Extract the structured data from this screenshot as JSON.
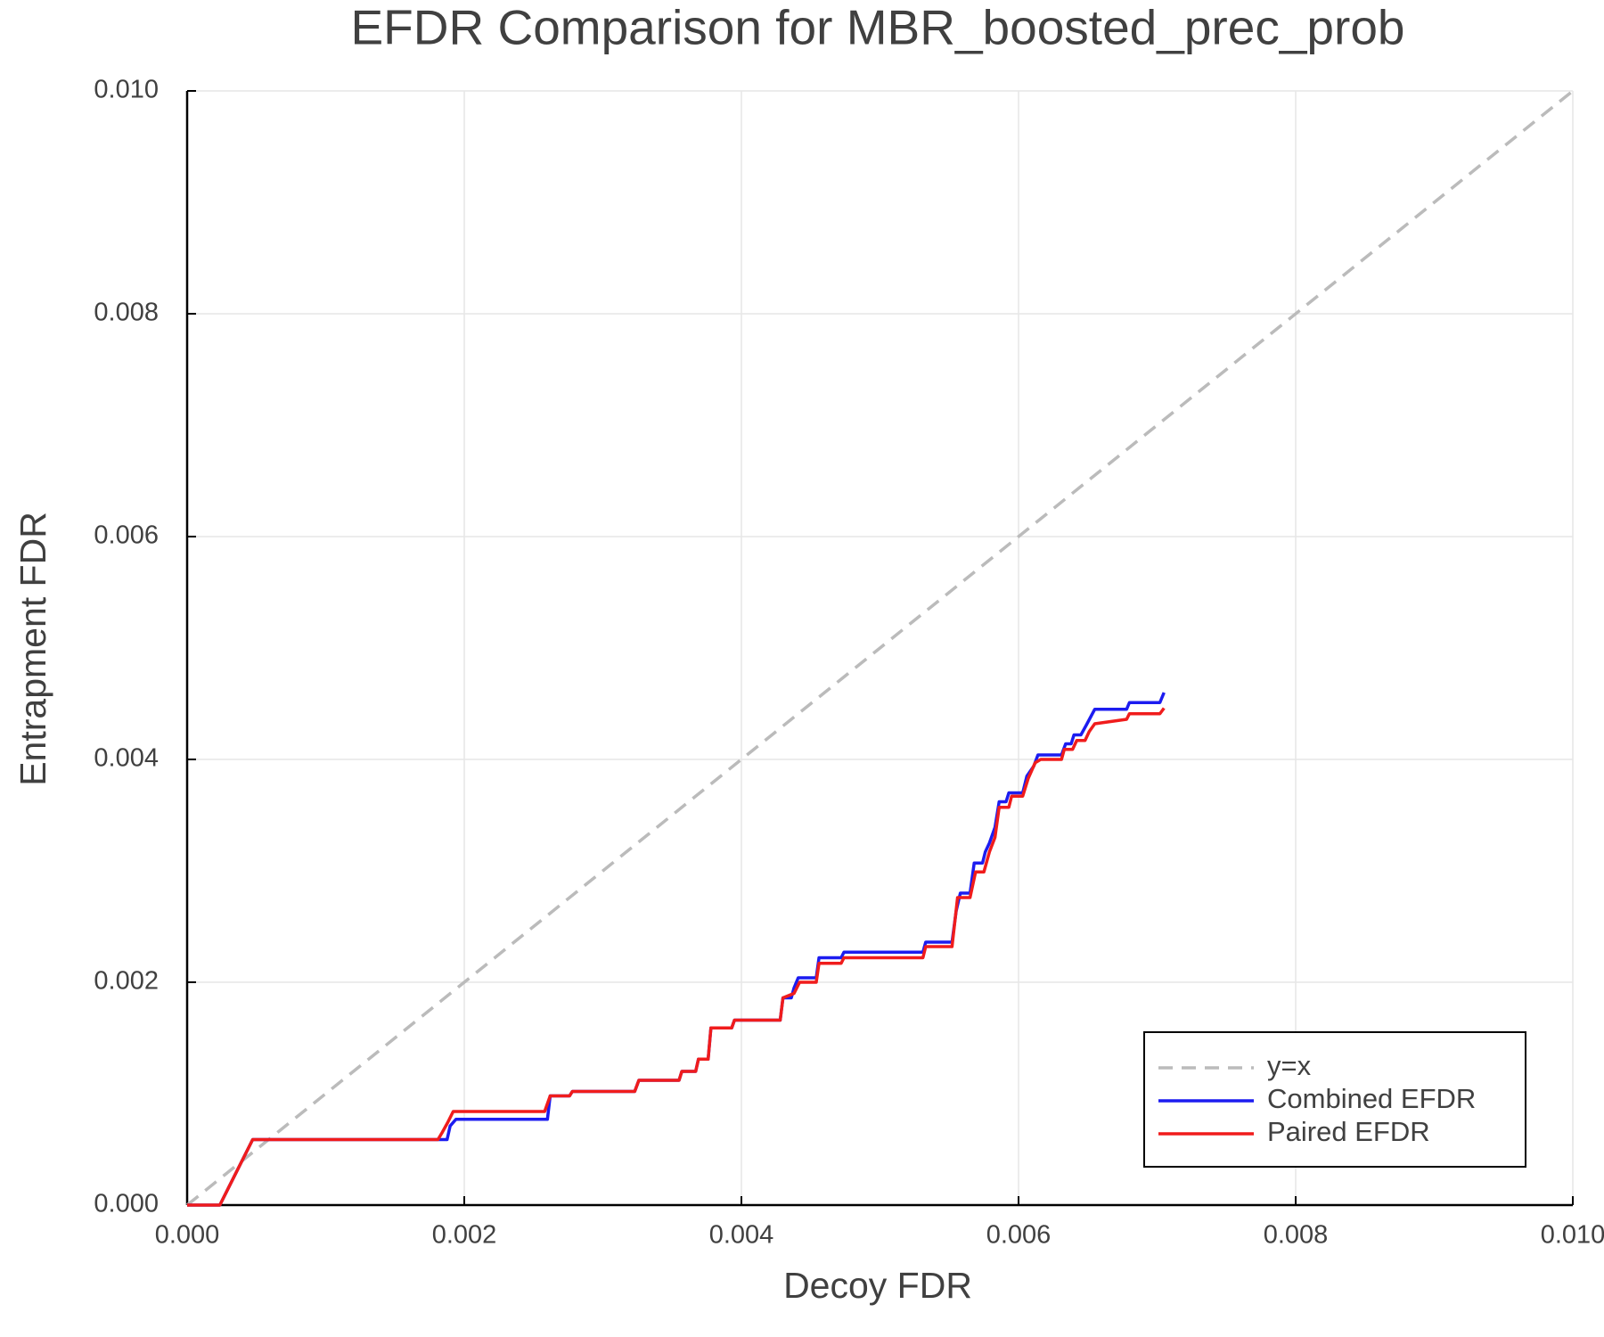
{
  "chart_data": {
    "type": "line",
    "title": "EFDR Comparison for MBR_boosted_prec_prob",
    "xlabel": "Decoy FDR",
    "ylabel": "Entrapment FDR",
    "xlim": [
      0,
      0.01
    ],
    "ylim": [
      0,
      0.01
    ],
    "xticks": [
      {
        "value": 0,
        "label": "0.000"
      },
      {
        "value": 0.002,
        "label": "0.002"
      },
      {
        "value": 0.004,
        "label": "0.004"
      },
      {
        "value": 0.006,
        "label": "0.006"
      },
      {
        "value": 0.008,
        "label": "0.008"
      },
      {
        "value": 0.01,
        "label": "0.010"
      }
    ],
    "yticks": [
      {
        "value": 0,
        "label": "0.000"
      },
      {
        "value": 0.002,
        "label": "0.002"
      },
      {
        "value": 0.004,
        "label": "0.004"
      },
      {
        "value": 0.006,
        "label": "0.006"
      },
      {
        "value": 0.008,
        "label": "0.008"
      },
      {
        "value": 0.01,
        "label": "0.010"
      }
    ],
    "grid": true,
    "legend": "lower right",
    "series": [
      {
        "name": "y=x",
        "color": "#bbbbbb",
        "linestyle": "dash",
        "x": [
          0,
          0.01
        ],
        "values": [
          0,
          0.01
        ]
      },
      {
        "name": "Combined EFDR",
        "color": "#1c1cf0",
        "linestyle": "solid",
        "x": [
          0,
          0.000236,
          0.000473,
          0.001876,
          0.001898,
          0.00194,
          0.0026,
          0.00262,
          0.00276,
          0.00278,
          0.00323,
          0.00326,
          0.00355,
          0.00357,
          0.00367,
          0.00369,
          0.00376,
          0.00378,
          0.00393,
          0.00395,
          0.00428,
          0.0043,
          0.00436,
          0.00438,
          0.00441,
          0.00454,
          0.00456,
          0.00472,
          0.00474,
          0.00531,
          0.00533,
          0.00552,
          0.00555,
          0.00558,
          0.00565,
          0.00568,
          0.00574,
          0.00576,
          0.00579,
          0.00583,
          0.00586,
          0.00591,
          0.00593,
          0.00603,
          0.00606,
          0.00611,
          0.00614,
          0.00631,
          0.00634,
          0.00638,
          0.0064,
          0.00645,
          0.00649,
          0.00652,
          0.00655,
          0.00678,
          0.0068,
          0.00702,
          0.00705
        ],
        "values": [
          0,
          0,
          0.000588,
          0.000588,
          0.00071,
          0.00077,
          0.00077,
          0.00098,
          0.00098,
          0.00102,
          0.00102,
          0.00112,
          0.00112,
          0.0012,
          0.0012,
          0.00131,
          0.00131,
          0.00159,
          0.00159,
          0.00166,
          0.00166,
          0.00186,
          0.00186,
          0.00195,
          0.00204,
          0.00204,
          0.00222,
          0.00222,
          0.00227,
          0.00227,
          0.00236,
          0.00236,
          0.00264,
          0.0028,
          0.0028,
          0.00307,
          0.00307,
          0.00317,
          0.00325,
          0.00339,
          0.00362,
          0.00362,
          0.0037,
          0.0037,
          0.00385,
          0.00394,
          0.00404,
          0.00404,
          0.00414,
          0.00414,
          0.00422,
          0.00422,
          0.00431,
          0.00438,
          0.00445,
          0.00445,
          0.00451,
          0.00451,
          0.0046
        ]
      },
      {
        "name": "Paired EFDR",
        "color": "#f01c1c",
        "linestyle": "solid",
        "x": [
          0,
          0.000236,
          0.000473,
          0.00181,
          0.00184,
          0.00188,
          0.00192,
          0.00258,
          0.00262,
          0.00276,
          0.00278,
          0.00323,
          0.00326,
          0.00355,
          0.00357,
          0.00367,
          0.00369,
          0.00376,
          0.00378,
          0.00393,
          0.00395,
          0.00428,
          0.0043,
          0.00438,
          0.00442,
          0.00454,
          0.00456,
          0.00472,
          0.00474,
          0.00531,
          0.00533,
          0.00552,
          0.00556,
          0.00565,
          0.00569,
          0.00575,
          0.00579,
          0.00583,
          0.00586,
          0.00593,
          0.00595,
          0.00603,
          0.00607,
          0.00612,
          0.00616,
          0.00631,
          0.00633,
          0.00639,
          0.00642,
          0.00648,
          0.00651,
          0.00655,
          0.00678,
          0.0068,
          0.00702,
          0.00705
        ],
        "values": [
          0,
          0,
          0.000588,
          0.000588,
          0.00065,
          0.00074,
          0.00084,
          0.00084,
          0.00098,
          0.00098,
          0.00102,
          0.00102,
          0.00112,
          0.00112,
          0.0012,
          0.0012,
          0.00131,
          0.00131,
          0.00159,
          0.00159,
          0.00166,
          0.00166,
          0.00186,
          0.0019,
          0.002,
          0.002,
          0.00217,
          0.00217,
          0.00222,
          0.00222,
          0.00232,
          0.00232,
          0.00276,
          0.00276,
          0.00299,
          0.00299,
          0.00317,
          0.0033,
          0.00357,
          0.00357,
          0.00367,
          0.00367,
          0.00383,
          0.00397,
          0.004,
          0.004,
          0.00409,
          0.00409,
          0.00417,
          0.00417,
          0.00425,
          0.00432,
          0.00436,
          0.00441,
          0.00441,
          0.00446
        ]
      }
    ]
  }
}
